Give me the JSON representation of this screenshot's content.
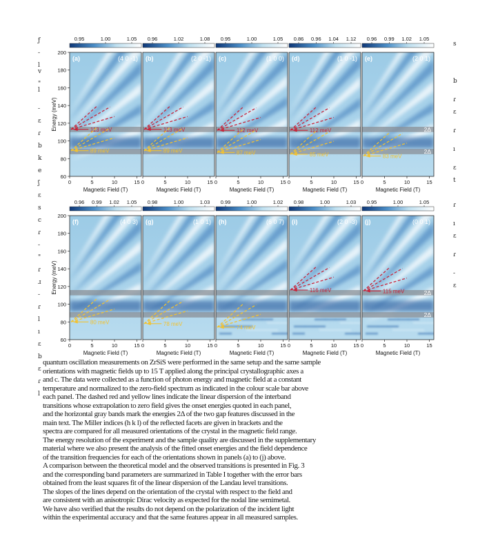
{
  "figure": {
    "rows": [
      {
        "ylabel": "Energy (meV)",
        "yticks": [
          "60",
          "80",
          "100",
          "120",
          "140",
          "160",
          "180",
          "200"
        ],
        "panels": [
          {
            "label": "(a)",
            "index": "(4 0 -1)",
            "cbar": [
              "0.95",
              "1.00",
              "1.05"
            ],
            "lines": [
              {
                "label": "113 meV",
                "value": 113,
                "color": "red"
              },
              {
                "label": "89 meV",
                "value": 89,
                "color": "yellow"
              }
            ]
          },
          {
            "label": "(b)",
            "index": "(2 0 -1)",
            "cbar": [
              "0.96",
              "1.02",
              "1.08"
            ],
            "lines": [
              {
                "label": "113 meV",
                "value": 113,
                "color": "red"
              },
              {
                "label": "89 meV",
                "value": 89,
                "color": "yellow"
              }
            ]
          },
          {
            "label": "(c)",
            "index": "(1 0 0)",
            "cbar": [
              "0.95",
              "1.00",
              "1.05"
            ],
            "lines": [
              {
                "label": "112 meV",
                "value": 112,
                "color": "red"
              },
              {
                "label": "87 meV",
                "value": 87,
                "color": "yellow"
              }
            ]
          },
          {
            "label": "(d)",
            "index": "(1 0 -1)",
            "cbar": [
              "0.86",
              "0.96",
              "1.04",
              "1.12"
            ],
            "lines": [
              {
                "label": "112 meV",
                "value": 112,
                "color": "red"
              },
              {
                "label": "85 meV",
                "value": 85,
                "color": "yellow"
              }
            ]
          },
          {
            "label": "(e)",
            "index": "(2 0 1)",
            "cbar": [
              "0.96",
              "0.99",
              "1.02",
              "1.05"
            ],
            "lines": [
              {
                "label": "83 meV",
                "value": 83,
                "color": "yellow"
              }
            ],
            "bandlabels": [
              "2Δ",
              "2Δ"
            ]
          }
        ]
      },
      {
        "ylabel": "Energy (meV)",
        "yticks": [
          "60",
          "80",
          "100",
          "120",
          "140",
          "160",
          "180",
          "200"
        ],
        "panels": [
          {
            "label": "(f)",
            "index": "(4 0 3)",
            "cbar": [
              "0.96",
              "0.99",
              "1.02",
              "1.05"
            ],
            "lines": [
              {
                "label": "80 meV",
                "value": 80,
                "color": "yellow"
              }
            ]
          },
          {
            "label": "(g)",
            "index": "(1 0 1)",
            "cbar": [
              "0.98",
              "1.00",
              "1.03"
            ],
            "lines": [
              {
                "label": "78 meV",
                "value": 78,
                "color": "yellow"
              }
            ]
          },
          {
            "label": "(h)",
            "index": "(6 0 7)",
            "cbar": [
              "0.99",
              "1.00",
              "1.02"
            ],
            "lines": [
              {
                "label": "74 meV",
                "value": 74,
                "color": "yellow"
              }
            ]
          },
          {
            "label": "(i)",
            "index": "(2 0 -3)",
            "cbar": [
              "0.98",
              "1.00",
              "1.03"
            ],
            "lines": [
              {
                "label": "116 meV",
                "value": 116,
                "color": "red"
              }
            ]
          },
          {
            "label": "(j)",
            "index": "(0 0 1)",
            "cbar": [
              "0.95",
              "1.00",
              "1.05"
            ],
            "lines": [
              {
                "label": "115 meV",
                "value": 115,
                "color": "red"
              }
            ],
            "bandlabels": [
              "2Δ",
              "2Δ"
            ]
          }
        ]
      }
    ],
    "xlabel": "Magnetic Field (T)",
    "xticks": [
      "0",
      "5",
      "10",
      "15"
    ],
    "gray_bands": [
      113,
      88
    ],
    "colors": {
      "dark_blue": "#1c4f94",
      "light": "#eef6fb",
      "red": "#c8243a",
      "yellow": "#f2c230",
      "band": "#8a8f96"
    }
  },
  "margin_left": "ƒ\n\n-\n\nl\nv\n\n\"\nl\n\n\n-\n\nɛ\n\nɾ\n\nb\n\nk\n\ne\n\nʃ\n\nɛ\n\ns\n\nc\n\nɾ\n\n-\n\n\"\n\nɾ\n\nɹ\n\n-\n\nɾ\n\nl\n\nı\n\nɛ\n\nb\n\nɛ\n\nɾ\n\nl",
  "margin_right": "s\n\n\n\n\n\nb\n\n\nɾ\n\nɛ\n\n\nɾ\n\n\nı\n\n\nɛ\n\nt\n\n\n\nɾ\n\n\nı\n\nɛ\n\n\nɾ\n\n\n-\n\nɛ",
  "body_lines": [
    "quantum oscillation measurements on ZrSiS were performed in the same setup and the same sample",
    "orientations with magnetic fields up to 15 T applied along the principal crystallographic axes a",
    "and c. The data were collected as a function of photon energy and magnetic field at a constant",
    "temperature and normalized to the zero-field spectrum as indicated in the colour scale bar above",
    "each panel. The dashed red and yellow lines indicate the linear dispersion of the interband",
    "transitions whose extrapolation to zero field gives the onset energies quoted in each panel,",
    "and the horizontal gray bands mark the energies 2Δ of the two gap features discussed in the",
    "main text. The Miller indices (h k l) of the reflected facets are given in brackets and the",
    "spectra are compared for all measured orientations of the crystal in the magnetic field range.",
    "The energy resolution of the experiment and the sample quality are discussed in the supplementary",
    "material where we also present the analysis of the fitted onset energies and the field dependence",
    "of the transition frequencies for each of the orientations shown in panels (a) to (j) above.",
    "A comparison between the theoretical model and the observed transitions is presented in Fig. 3",
    "and the corresponding band parameters are summarized in Table I together with the error bars",
    "obtained from the least squares fit of the linear dispersion of the Landau level transitions.",
    "The slopes of the lines depend on the orientation of the crystal with respect to the field and",
    "are consistent with an anisotropic Dirac velocity as expected for the nodal line semimetal.",
    "We have also verified that the results do not depend on the polarization of the incident light",
    "within the experimental accuracy and that the same features appear in all measured samples."
  ]
}
